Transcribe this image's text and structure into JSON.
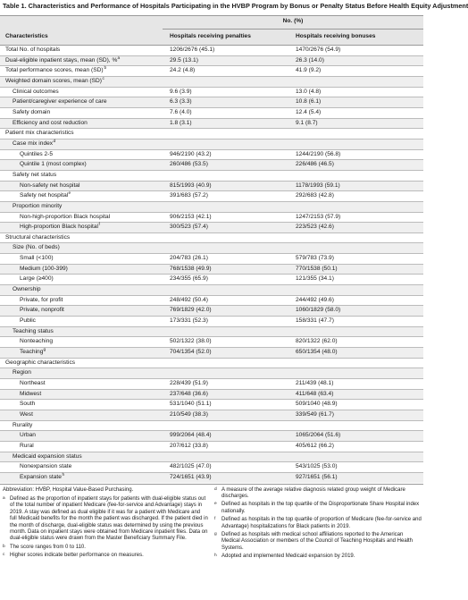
{
  "title": "Table 1. Characteristics and Performance of Hospitals Participating in the HVBP Program by Bonus or Penalty Status Before Health Equity Adjustment",
  "header": {
    "group": "No. (%)",
    "col0": "Characteristics",
    "col1": "Hospitals receiving penalties",
    "col2": "Hospitals receiving bonuses"
  },
  "rows": [
    {
      "label": "Total No. of hospitals",
      "v1": "1206/2676 (45.1)",
      "v2": "1470/2676 (54.9)",
      "indent": 0
    },
    {
      "label": "Dual-eligible inpatient stays, mean (SD), %",
      "sup": "a",
      "v1": "29.5 (13.1)",
      "v2": "26.3 (14.0)",
      "indent": 0
    },
    {
      "label": "Total performance scores, mean (SD)",
      "sup": "b",
      "v1": "24.2 (4.8)",
      "v2": "41.9 (9.2)",
      "indent": 0
    },
    {
      "label": "Weighted domain scores, mean (SD)",
      "sup": "c",
      "v1": "",
      "v2": "",
      "indent": 0
    },
    {
      "label": "Clinical outcomes",
      "v1": "9.6 (3.9)",
      "v2": "13.0 (4.8)",
      "indent": 1
    },
    {
      "label": "Patient/caregiver experience of care",
      "v1": "6.3 (3.3)",
      "v2": "10.8 (6.1)",
      "indent": 1
    },
    {
      "label": "Safety domain",
      "v1": "7.6 (4.0)",
      "v2": "12.4 (5.4)",
      "indent": 1
    },
    {
      "label": "Efficiency and cost reduction",
      "v1": "1.8 (3.1)",
      "v2": "9.1 (8.7)",
      "indent": 1
    },
    {
      "label": "Patient mix characteristics",
      "v1": "",
      "v2": "",
      "indent": 0
    },
    {
      "label": "Case mix index",
      "sup": "d",
      "v1": "",
      "v2": "",
      "indent": 1
    },
    {
      "label": "Quintiles 2-5",
      "v1": "946/2190 (43.2)",
      "v2": "1244/2190 (56.8)",
      "indent": 2
    },
    {
      "label": "Quintile 1 (most complex)",
      "v1": "260/486 (53.5)",
      "v2": "226/486 (46.5)",
      "indent": 2
    },
    {
      "label": "Safety net status",
      "v1": "",
      "v2": "",
      "indent": 1
    },
    {
      "label": "Non-safety net hospital",
      "v1": "815/1993 (40.9)",
      "v2": "1178/1993 (59.1)",
      "indent": 2
    },
    {
      "label": "Safety net hospital",
      "sup": "e",
      "v1": "391/683 (57.2)",
      "v2": "292/683 (42.8)",
      "indent": 2
    },
    {
      "label": "Proportion minority",
      "v1": "",
      "v2": "",
      "indent": 1
    },
    {
      "label": "Non-high-proportion Black hospital",
      "v1": "906/2153 (42.1)",
      "v2": "1247/2153 (57.9)",
      "indent": 2
    },
    {
      "label": "High-proportion Black hospital",
      "sup": "f",
      "v1": "300/523 (57.4)",
      "v2": "223/523 (42.6)",
      "indent": 2
    },
    {
      "label": "Structural characteristics",
      "v1": "",
      "v2": "",
      "indent": 0
    },
    {
      "label": "Size (No. of beds)",
      "v1": "",
      "v2": "",
      "indent": 1
    },
    {
      "label": "Small (<100)",
      "v1": "204/783 (26.1)",
      "v2": "579/783 (73.9)",
      "indent": 2
    },
    {
      "label": "Medium (100-399)",
      "v1": "768/1538 (49.9)",
      "v2": "770/1538 (50.1)",
      "indent": 2
    },
    {
      "label": "Large (≥400)",
      "v1": "234/355 (65.9)",
      "v2": "121/355 (34.1)",
      "indent": 2
    },
    {
      "label": "Ownership",
      "v1": "",
      "v2": "",
      "indent": 1
    },
    {
      "label": "Private, for profit",
      "v1": "248/492 (50.4)",
      "v2": "244/492 (49.6)",
      "indent": 2
    },
    {
      "label": "Private, nonprofit",
      "v1": "769/1829 (42.0)",
      "v2": "1060/1829 (58.0)",
      "indent": 2
    },
    {
      "label": "Public",
      "v1": "173/331 (52.3)",
      "v2": "158/331 (47.7)",
      "indent": 2
    },
    {
      "label": "Teaching status",
      "v1": "",
      "v2": "",
      "indent": 1
    },
    {
      "label": "Nonteaching",
      "v1": "502/1322 (38.0)",
      "v2": "820/1322 (62.0)",
      "indent": 2
    },
    {
      "label": "Teaching",
      "sup": "g",
      "v1": "704/1354 (52.0)",
      "v2": "650/1354 (48.0)",
      "indent": 2
    },
    {
      "label": "Geographic characteristics",
      "v1": "",
      "v2": "",
      "indent": 0
    },
    {
      "label": "Region",
      "v1": "",
      "v2": "",
      "indent": 1
    },
    {
      "label": "Northeast",
      "v1": "228/439 (51.9)",
      "v2": "211/439 (48.1)",
      "indent": 2
    },
    {
      "label": "Midwest",
      "v1": "237/648 (36.6)",
      "v2": "411/648 (63.4)",
      "indent": 2
    },
    {
      "label": "South",
      "v1": "531/1040 (51.1)",
      "v2": "509/1040 (48.9)",
      "indent": 2
    },
    {
      "label": "West",
      "v1": "210/549 (38.3)",
      "v2": "339/549 (61.7)",
      "indent": 2
    },
    {
      "label": "Rurality",
      "v1": "",
      "v2": "",
      "indent": 1
    },
    {
      "label": "Urban",
      "v1": "999/2064 (48.4)",
      "v2": "1065/2064 (51.6)",
      "indent": 2
    },
    {
      "label": "Rural",
      "v1": "207/612 (33.8)",
      "v2": "405/612 (66.2)",
      "indent": 2
    },
    {
      "label": "Medicaid expansion status",
      "v1": "",
      "v2": "",
      "indent": 1
    },
    {
      "label": "Nonexpansion state",
      "v1": "482/1025 (47.0)",
      "v2": "543/1025 (53.0)",
      "indent": 2
    },
    {
      "label": "Expansion state",
      "sup": "h",
      "v1": "724/1651 (43.9)",
      "v2": "927/1651 (56.1)",
      "indent": 2
    }
  ],
  "footnotes": {
    "abbreviation": "Abbreviation: HVBP, Hospital Value-Based Purchasing.",
    "left": [
      {
        "mark": "a",
        "text": "Defined as the proportion of inpatient stays for patients with dual-eligible status out of the total number of inpatient Medicare (fee-for-service and Advantage) stays in 2019. A stay was defined as dual eligible if it was for a patient with Medicare and full Medicaid benefits for the month the patient was discharged. If the patient died in the month of discharge, dual-eligible status was determined by using the previous month. Data on inpatient stays were obtained from Medicare inpatient files. Data on dual-eligible status were drawn from the Master Beneficiary Summary File."
      },
      {
        "mark": "b",
        "text": "The score ranges from 0 to 110."
      },
      {
        "mark": "c",
        "text": "Higher scores indicate better performance on measures."
      }
    ],
    "right": [
      {
        "mark": "d",
        "text": "A measure of the average relative diagnosis related group weight of Medicare discharges."
      },
      {
        "mark": "e",
        "text": "Defined as hospitals in the top quartile of the Disproportionate Share Hospital index nationally."
      },
      {
        "mark": "f",
        "text": "Defined as hospitals in the top quartile of proportion of Medicare (fee-for-service and Advantage) hospitalizations for Black patients in 2019."
      },
      {
        "mark": "g",
        "text": "Defined as hospitals with medical school affiliations reported to the American Medical Association or members of the Council of Teaching Hospitals and Health Systems."
      },
      {
        "mark": "h",
        "text": "Adopted and implemented Medicaid expansion by 2019."
      }
    ]
  }
}
